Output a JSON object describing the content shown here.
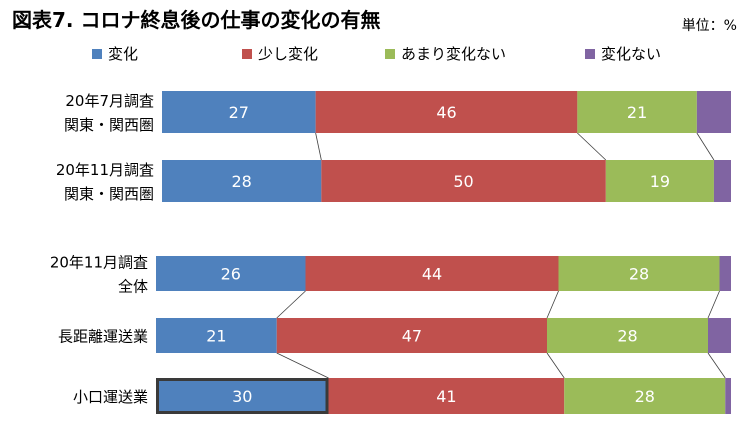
{
  "chart_data": {
    "type": "bar",
    "orientation": "horizontal",
    "stacked": true,
    "title": "図表7. コロナ終息後の仕事の変化の有無",
    "unit_label": "単位：%",
    "legend_position": "top",
    "grid": false,
    "xlim": [
      0,
      100
    ],
    "series": [
      {
        "name": "変化",
        "color": "#4f81bd",
        "values": [
          27,
          28,
          26,
          21,
          30
        ]
      },
      {
        "name": "少し変化",
        "color": "#c0504d",
        "values": [
          46,
          50,
          44,
          47,
          41
        ]
      },
      {
        "name": "あまり変化ない",
        "color": "#9bbb59",
        "values": [
          21,
          19,
          28,
          28,
          28
        ]
      },
      {
        "name": "変化ない",
        "color": "#8064a2",
        "values": [
          6,
          3,
          2,
          4,
          1
        ]
      }
    ],
    "categories": [
      {
        "lines": [
          "20年7月調査",
          "関東・関西圏"
        ]
      },
      {
        "lines": [
          "20年11月調査",
          "関東・関西圏"
        ]
      },
      {
        "lines": [
          "20年11月調査",
          "全体"
        ]
      },
      {
        "lines": [
          "長距離運送業"
        ]
      },
      {
        "lines": [
          "小口運送業"
        ]
      }
    ],
    "highlighted": {
      "category_index": 4,
      "series_index": 0
    },
    "connector_lines": true,
    "small_segment_labels_hidden": true
  }
}
